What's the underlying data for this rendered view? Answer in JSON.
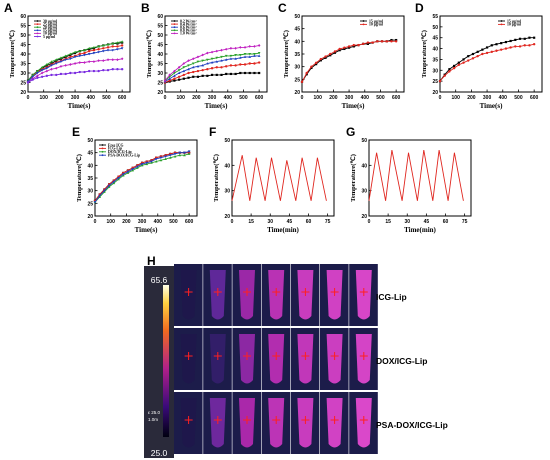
{
  "panels": [
    {
      "letter": "A",
      "ylabel": "Temperature(℃)",
      "xlabel": "Time(s)",
      "ylim": [
        20,
        60
      ],
      "yticks": [
        20,
        25,
        30,
        35,
        40,
        45,
        50,
        55,
        60
      ],
      "xlim": [
        0,
        650
      ],
      "xticks": [
        0,
        100,
        200,
        300,
        400,
        500,
        600
      ]
    },
    {
      "letter": "B",
      "ylabel": "Temperature(℃)",
      "xlabel": "Time(s)",
      "ylim": [
        20,
        60
      ],
      "yticks": [
        20,
        25,
        30,
        35,
        40,
        45,
        50,
        55,
        60
      ],
      "xlim": [
        0,
        650
      ],
      "xticks": [
        0,
        100,
        200,
        300,
        400,
        500,
        600
      ]
    },
    {
      "letter": "C",
      "ylabel": "Temperature(℃)",
      "xlabel": "Time(s)",
      "ylim": [
        20,
        50
      ],
      "yticks": [
        20,
        25,
        30,
        35,
        40,
        45,
        50
      ],
      "xlim": [
        0,
        650
      ],
      "xticks": [
        0,
        100,
        200,
        300,
        400,
        500,
        600
      ]
    },
    {
      "letter": "D",
      "ylabel": "Temperature(℃)",
      "xlabel": "Time(s)",
      "ylim": [
        20,
        55
      ],
      "yticks": [
        20,
        25,
        30,
        35,
        40,
        45,
        50,
        55
      ],
      "xlim": [
        0,
        650
      ],
      "xticks": [
        0,
        100,
        200,
        300,
        400,
        500,
        600
      ]
    },
    {
      "letter": "E",
      "ylabel": "Temperature(℃)",
      "xlabel": "Time(s)",
      "ylim": [
        20,
        50
      ],
      "yticks": [
        20,
        25,
        30,
        35,
        40,
        45,
        50
      ],
      "xlim": [
        0,
        650
      ],
      "xticks": [
        0,
        100,
        200,
        300,
        400,
        500,
        600
      ]
    },
    {
      "letter": "F",
      "ylabel": "Temperature(℃)",
      "xlabel": "Time(min)",
      "ylim": [
        20,
        50
      ],
      "yticks": [
        20,
        30,
        40,
        50
      ],
      "xlim": [
        0,
        80
      ],
      "xticks": [
        0,
        15,
        30,
        45,
        60,
        75
      ]
    },
    {
      "letter": "G",
      "ylabel": "Temperature(℃)",
      "xlabel": "Time(min)",
      "ylim": [
        20,
        50
      ],
      "yticks": [
        20,
        30,
        40,
        50
      ],
      "xlim": [
        0,
        80
      ],
      "xticks": [
        0,
        15,
        30,
        45,
        60,
        75
      ]
    }
  ],
  "chart_data": [
    {
      "type": "line",
      "panel": "A",
      "x": [
        0,
        30,
        60,
        90,
        120,
        150,
        180,
        210,
        240,
        270,
        300,
        330,
        360,
        390,
        420,
        450,
        480,
        510,
        540,
        570,
        600
      ],
      "series": [
        {
          "name": "30 μg/ml",
          "color": "#000000",
          "values": [
            26,
            29,
            31,
            32.5,
            34,
            35,
            36.5,
            37.5,
            38.5,
            39.5,
            40.5,
            41.5,
            42,
            42.5,
            43,
            44,
            44.5,
            45,
            45.5,
            45.5,
            46
          ]
        },
        {
          "name": "25 μg/ml",
          "color": "#e0261f",
          "values": [
            25.5,
            28.5,
            30.5,
            32,
            33,
            34.5,
            35.5,
            36.5,
            37.5,
            38.5,
            39,
            40,
            40.5,
            41.5,
            42,
            42.5,
            43,
            43.5,
            44,
            44,
            44.5
          ]
        },
        {
          "name": "20 μg/ml",
          "color": "#2aa02a",
          "values": [
            26,
            29,
            31,
            33,
            34.5,
            36,
            37,
            38,
            39,
            40,
            41,
            41.5,
            42,
            43,
            43.5,
            44,
            44.5,
            45,
            45.5,
            46,
            46.5
          ]
        },
        {
          "name": "15 μg/ml",
          "color": "#1f3fbf",
          "values": [
            25.5,
            28,
            30,
            31.5,
            32.5,
            34,
            35,
            36,
            37,
            37.5,
            38.5,
            39,
            39.5,
            40,
            40.5,
            41,
            41.5,
            42,
            42,
            42.5,
            43
          ]
        },
        {
          "name": "10 μg/ml",
          "color": "#c020c0",
          "values": [
            25,
            27,
            28.5,
            30,
            31,
            32,
            32.5,
            33.5,
            34,
            34.5,
            35,
            35.5,
            35.5,
            36,
            36,
            36.5,
            36.5,
            37,
            37,
            37,
            37.5
          ]
        },
        {
          "name": "5 μg/ml",
          "color": "#7a2be0",
          "values": [
            25,
            26.5,
            27.5,
            28,
            28.5,
            29,
            29,
            29.5,
            29.5,
            30,
            30,
            30.5,
            30.5,
            31,
            31,
            31,
            31.5,
            31.5,
            32,
            32,
            32
          ]
        }
      ]
    },
    {
      "type": "line",
      "panel": "B",
      "x": [
        0,
        30,
        60,
        90,
        120,
        150,
        180,
        210,
        240,
        270,
        300,
        330,
        360,
        390,
        420,
        450,
        480,
        510,
        540,
        570,
        600
      ],
      "series": [
        {
          "name": "0.2 W/cm²",
          "color": "#000000",
          "values": [
            25,
            25.5,
            26,
            26.5,
            27,
            27.5,
            28,
            28,
            28.5,
            28.5,
            29,
            29,
            29,
            29.5,
            29.5,
            29.5,
            30,
            30,
            30,
            30,
            30
          ]
        },
        {
          "name": "0.4 W/cm²",
          "color": "#e0261f",
          "values": [
            25,
            26,
            27,
            28,
            29,
            30,
            30.5,
            31,
            31.5,
            32,
            32.5,
            33,
            33,
            33.5,
            34,
            34,
            34.5,
            34.5,
            35,
            35,
            35.5
          ]
        },
        {
          "name": "0.6 W/cm²",
          "color": "#1f3fbf",
          "values": [
            25.5,
            27,
            28.5,
            30,
            31,
            32,
            33,
            33.5,
            34,
            35,
            35.5,
            36,
            36.5,
            37,
            37.5,
            37.5,
            38,
            38.5,
            38.5,
            39,
            39
          ]
        },
        {
          "name": "0.8 W/cm²",
          "color": "#2aa02a",
          "values": [
            26,
            28,
            30,
            31.5,
            33,
            34,
            35,
            36,
            36.5,
            37,
            37.5,
            38,
            38.5,
            39,
            39,
            39.5,
            39.5,
            40,
            40,
            40,
            40.5
          ]
        },
        {
          "name": "1.0 W/cm²",
          "color": "#c020c0",
          "values": [
            26,
            29,
            31,
            33,
            35,
            36.5,
            37.5,
            38.5,
            39.5,
            40.5,
            41,
            41.5,
            42,
            42.5,
            43,
            43,
            43.5,
            43.5,
            44,
            44,
            44.5
          ]
        }
      ]
    },
    {
      "type": "line",
      "panel": "C",
      "x": [
        0,
        30,
        60,
        90,
        120,
        150,
        180,
        210,
        240,
        270,
        300,
        330,
        360,
        390,
        420,
        450,
        480,
        510,
        540,
        570,
        600
      ],
      "series": [
        {
          "name": "15 μg/ml",
          "color": "#000000",
          "values": [
            24,
            27,
            29.5,
            31,
            32.5,
            33.5,
            34.5,
            35.5,
            36.5,
            37,
            37.5,
            38,
            38.5,
            39,
            39,
            39.5,
            40,
            40,
            40,
            40.5,
            40.5
          ]
        },
        {
          "name": "10 μg/ml",
          "color": "#e0261f",
          "values": [
            24,
            27.5,
            30,
            31.5,
            33,
            34,
            35,
            36,
            37,
            37.5,
            38,
            38.5,
            38.5,
            39,
            39.5,
            39.5,
            40,
            40,
            40,
            40,
            40
          ]
        }
      ]
    },
    {
      "type": "line",
      "panel": "D",
      "x": [
        0,
        30,
        60,
        90,
        120,
        150,
        180,
        210,
        240,
        270,
        300,
        330,
        360,
        390,
        420,
        450,
        480,
        510,
        540,
        570,
        600
      ],
      "series": [
        {
          "name": "15 μg/ml",
          "color": "#000000",
          "values": [
            25,
            28,
            30.5,
            32,
            33.5,
            35,
            36.5,
            37.5,
            38.5,
            39.5,
            40.5,
            41.5,
            42,
            42.5,
            43,
            43.5,
            44,
            44.5,
            44.5,
            45,
            45
          ]
        },
        {
          "name": "10 μg/ml",
          "color": "#e0261f",
          "values": [
            25,
            27.5,
            29.5,
            31,
            32.5,
            33.5,
            34.5,
            35.5,
            36.5,
            37.5,
            38,
            38.5,
            39,
            39.5,
            40,
            40.5,
            41,
            41,
            41.5,
            41.5,
            42
          ]
        }
      ]
    },
    {
      "type": "line",
      "panel": "E",
      "x": [
        0,
        30,
        60,
        90,
        120,
        150,
        180,
        210,
        240,
        270,
        300,
        330,
        360,
        390,
        420,
        450,
        480,
        510,
        540,
        570,
        600
      ],
      "series": [
        {
          "name": "Free ICG",
          "color": "#000000",
          "values": [
            26,
            28.5,
            30.5,
            32.5,
            34,
            35.5,
            37,
            38,
            39,
            40,
            41,
            41.5,
            42,
            43,
            43.5,
            44,
            44.5,
            45,
            45,
            45,
            45
          ]
        },
        {
          "name": "ICG-Lip",
          "color": "#e0261f",
          "values": [
            26,
            28.5,
            30.5,
            32.5,
            34,
            35.5,
            37,
            38,
            39,
            40,
            41,
            41.5,
            42,
            43,
            43.5,
            44,
            44.5,
            45,
            45,
            45,
            45
          ]
        },
        {
          "name": "DOX/ICG-Lip",
          "color": "#2aa02a",
          "values": [
            25.5,
            27.5,
            29.5,
            31.5,
            33,
            34.5,
            36,
            37,
            38,
            39,
            40,
            40.5,
            41,
            41.5,
            42,
            42.5,
            43,
            43.5,
            44,
            44,
            44.5
          ]
        },
        {
          "name": "PSA-DOX/ICG-Lip",
          "color": "#1f3fbf",
          "values": [
            25.5,
            28,
            30,
            32,
            33.5,
            35,
            36.5,
            37.5,
            38.5,
            39.5,
            40.5,
            41,
            41.5,
            42.5,
            43,
            43.5,
            44,
            44.5,
            45,
            45,
            45.5
          ]
        }
      ]
    },
    {
      "type": "line",
      "panel": "F",
      "x": [
        0,
        8,
        14,
        19,
        26,
        31,
        38,
        43,
        50,
        55,
        62,
        67,
        74
      ],
      "series": [
        {
          "name": "",
          "color": "#e0261f",
          "values": [
            26,
            44,
            26,
            43,
            26,
            43,
            26,
            42,
            26,
            43,
            26,
            43,
            26
          ]
        }
      ]
    },
    {
      "type": "line",
      "panel": "G",
      "x": [
        0,
        6,
        13,
        18,
        26,
        31,
        38,
        43,
        50,
        55,
        62,
        67,
        74
      ],
      "series": [
        {
          "name": "",
          "color": "#e0261f",
          "values": [
            26,
            45,
            26,
            46,
            26,
            45,
            26,
            46,
            26,
            46,
            26,
            45,
            26
          ]
        }
      ]
    }
  ],
  "thermal": {
    "letter": "H",
    "scale_max": "65.6",
    "scale_min": "25.0",
    "meta_line1": "ε 25.0",
    "meta_line2": "1.0m",
    "rows": [
      {
        "label": "ICG-Lip",
        "levels": [
          0.05,
          0.35,
          0.55,
          0.7,
          0.8,
          0.85,
          0.9
        ]
      },
      {
        "label": "DOX/ICG-Lip",
        "levels": [
          0.05,
          0.15,
          0.5,
          0.65,
          0.75,
          0.82,
          0.88
        ]
      },
      {
        "label": "PSA-DOX/ICG-Lip",
        "levels": [
          0.05,
          0.4,
          0.6,
          0.72,
          0.8,
          0.86,
          0.92
        ]
      }
    ]
  }
}
